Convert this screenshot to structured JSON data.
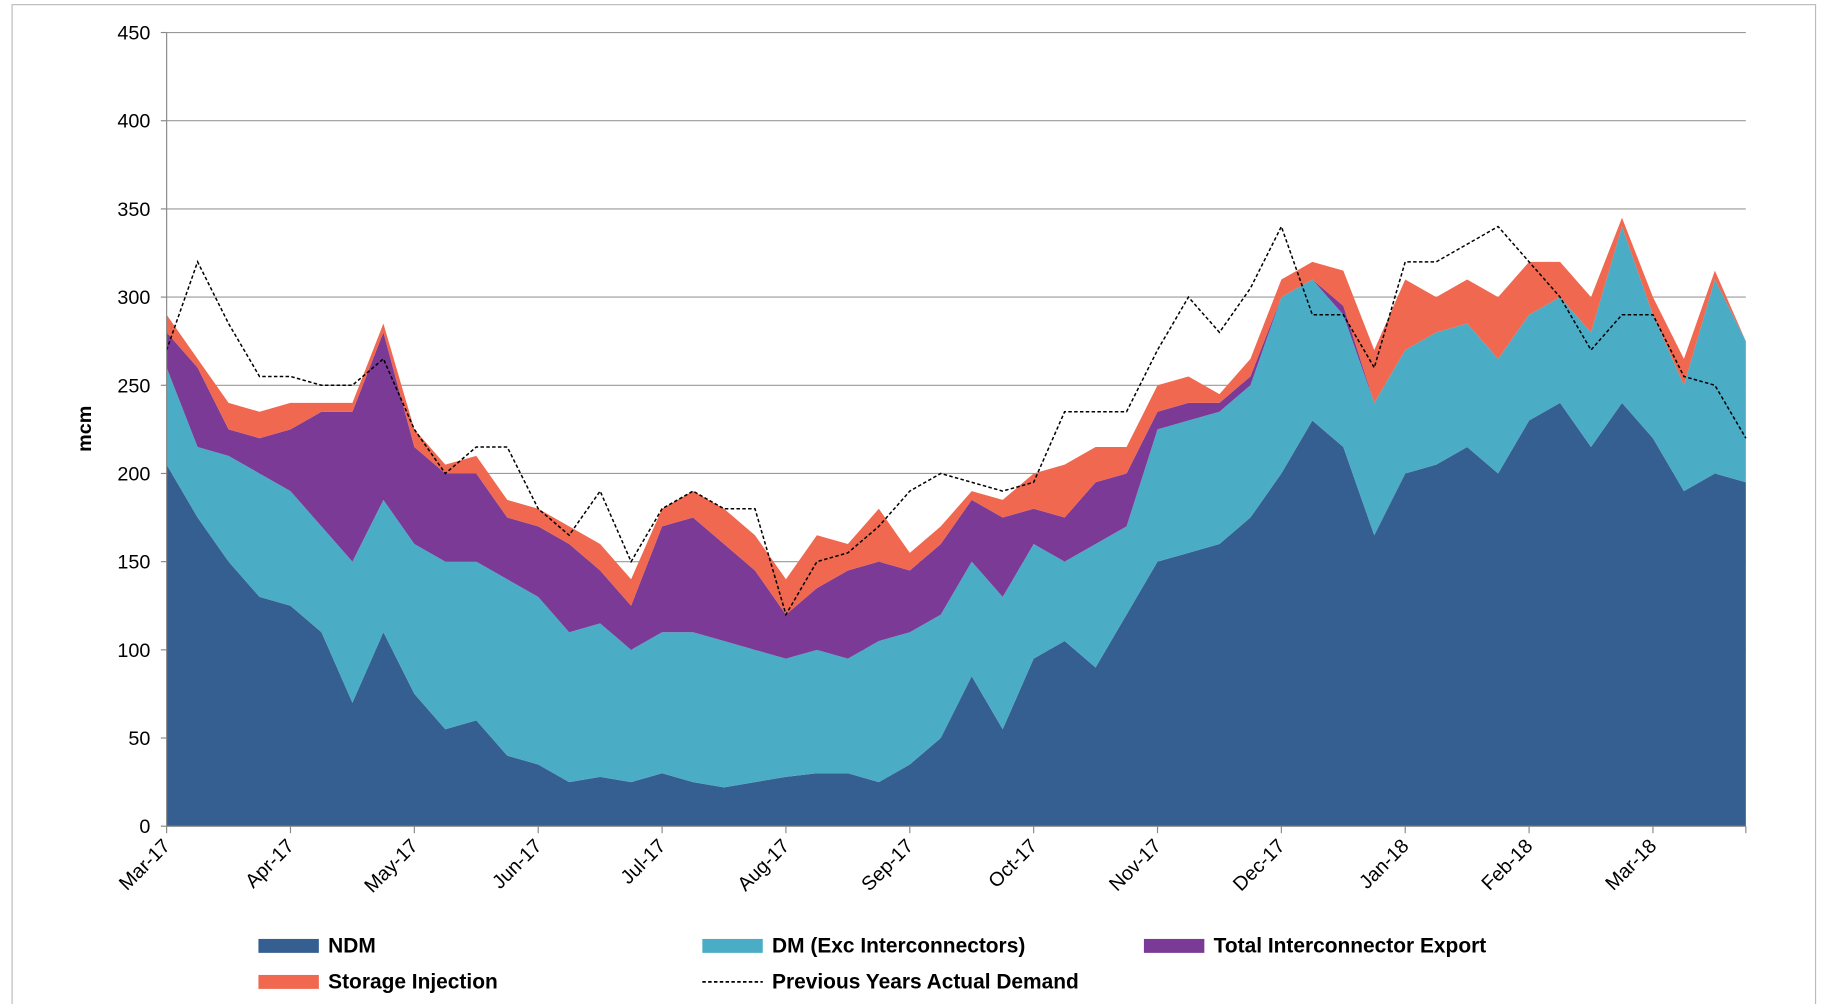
{
  "chart_data": {
    "type": "stacked_area",
    "y_label": "mcm",
    "categories": [
      "Mar-17",
      null,
      null,
      null,
      "Apr-17",
      null,
      null,
      null,
      "May-17",
      null,
      null,
      null,
      "Jun-17",
      null,
      null,
      null,
      "Jul-17",
      null,
      null,
      null,
      "Aug-17",
      null,
      null,
      null,
      "Sep-17",
      null,
      null,
      null,
      "Oct-17",
      null,
      null,
      null,
      "Nov-17",
      null,
      null,
      null,
      "Dec-17",
      null,
      null,
      null,
      "Jan-18",
      null,
      null,
      null,
      "Feb-18",
      null,
      null,
      null,
      "Mar-18",
      null,
      null,
      null
    ],
    "series": [
      {
        "name": "NDM",
        "color": "#365f91",
        "values": [
          205,
          175,
          150,
          130,
          125,
          110,
          70,
          110,
          75,
          55,
          60,
          40,
          35,
          25,
          28,
          25,
          30,
          25,
          22,
          25,
          28,
          30,
          30,
          25,
          35,
          50,
          85,
          55,
          95,
          105,
          90,
          120,
          150,
          155,
          160,
          175,
          200,
          230,
          215,
          165,
          200,
          205,
          215,
          200,
          230,
          240,
          215,
          240,
          220,
          190,
          200,
          195
        ]
      },
      {
        "name": "DM (Exc Interconnectors)",
        "color": "#4bacc6",
        "values": [
          55,
          40,
          60,
          70,
          65,
          60,
          80,
          75,
          85,
          95,
          90,
          100,
          95,
          85,
          87,
          75,
          80,
          85,
          83,
          75,
          67,
          70,
          65,
          80,
          75,
          70,
          65,
          75,
          65,
          45,
          70,
          50,
          75,
          75,
          75,
          75,
          100,
          80,
          75,
          75,
          70,
          75,
          70,
          65,
          60,
          60,
          65,
          100,
          70,
          60,
          110,
          80
        ]
      },
      {
        "name": "Total Interconnector Export",
        "color": "#7a3a96",
        "values": [
          20,
          45,
          15,
          20,
          35,
          65,
          85,
          95,
          55,
          50,
          50,
          35,
          40,
          50,
          30,
          25,
          60,
          65,
          55,
          45,
          25,
          35,
          50,
          45,
          35,
          40,
          35,
          45,
          20,
          25,
          35,
          30,
          10,
          10,
          5,
          5,
          0,
          0,
          5,
          0,
          0,
          0,
          0,
          0,
          0,
          0,
          0,
          0,
          0,
          0,
          0,
          0
        ]
      },
      {
        "name": "Storage Injection",
        "color": "#f0684f",
        "values": [
          10,
          5,
          15,
          15,
          15,
          5,
          5,
          5,
          10,
          5,
          10,
          10,
          10,
          10,
          15,
          15,
          10,
          15,
          20,
          20,
          20,
          30,
          15,
          30,
          10,
          10,
          5,
          10,
          20,
          30,
          20,
          15,
          15,
          15,
          5,
          10,
          10,
          10,
          20,
          30,
          40,
          20,
          25,
          35,
          30,
          20,
          20,
          5,
          10,
          15,
          5,
          0
        ]
      }
    ],
    "line": {
      "name": "Previous Years Actual Demand",
      "color": "#000000",
      "values": [
        270,
        320,
        285,
        255,
        255,
        250,
        250,
        265,
        225,
        200,
        215,
        215,
        180,
        165,
        190,
        150,
        180,
        190,
        180,
        180,
        120,
        150,
        155,
        170,
        190,
        200,
        195,
        190,
        195,
        235,
        235,
        235,
        270,
        300,
        280,
        305,
        340,
        290,
        290,
        260,
        320,
        320,
        330,
        340,
        320,
        300,
        270,
        290,
        290,
        255,
        250,
        220
      ]
    },
    "ylim": [
      0,
      450
    ],
    "yticks": [
      0,
      50,
      100,
      150,
      200,
      250,
      300,
      350,
      400,
      450
    ],
    "grid": true
  }
}
